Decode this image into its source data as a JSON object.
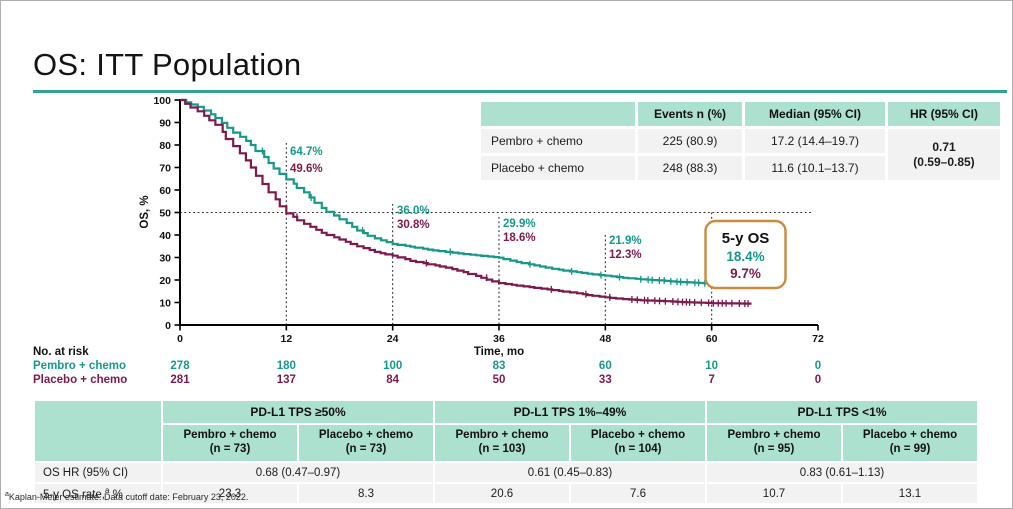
{
  "slide": {
    "title": "OS: ITT Population"
  },
  "colors": {
    "pembro": "#16998a",
    "placebo": "#7d1a4d",
    "header_bg": "#ace0cf",
    "row_bg": "#f2f2f2",
    "title_rule": "#31a294",
    "five_year_box_border": "#c98b3e"
  },
  "summary_table": {
    "col_headers": [
      "Events n (%)",
      "Median (95% CI)",
      "HR (95% CI)"
    ],
    "rows": [
      {
        "label": "Pembro + chemo",
        "events": "225 (80.9)",
        "median": "17.2 (14.4–19.7)"
      },
      {
        "label": "Placebo + chemo",
        "events": "248 (88.3)",
        "median": "11.6 (10.1–13.7)"
      }
    ],
    "hr_line1": "0.71",
    "hr_line2": "(0.59–0.85)"
  },
  "chart_data": {
    "type": "line",
    "subtype": "kaplan-meier-step",
    "title": "",
    "xlabel": "Time, mo",
    "ylabel": "OS, %",
    "xlim": [
      0,
      72
    ],
    "ylim": [
      0,
      100
    ],
    "x_ticks": [
      0,
      12,
      24,
      36,
      48,
      60,
      72
    ],
    "y_ticks": [
      0,
      10,
      20,
      30,
      40,
      50,
      60,
      70,
      80,
      90,
      100
    ],
    "grid": false,
    "reference_line_y": 50,
    "series": [
      {
        "name": "Pembro + chemo",
        "color": "#16998a",
        "end_time": 66,
        "km_points": [
          [
            0,
            100
          ],
          [
            2,
            97
          ],
          [
            4,
            92
          ],
          [
            6,
            85.5
          ],
          [
            8,
            80
          ],
          [
            10,
            72
          ],
          [
            12,
            64.7
          ],
          [
            14,
            59
          ],
          [
            16,
            52
          ],
          [
            18,
            47
          ],
          [
            20,
            42
          ],
          [
            22,
            38.5
          ],
          [
            24,
            36.0
          ],
          [
            26,
            34.8
          ],
          [
            28,
            33.5
          ],
          [
            30,
            32.5
          ],
          [
            32,
            31.5
          ],
          [
            34,
            30.7
          ],
          [
            36,
            29.9
          ],
          [
            38,
            28
          ],
          [
            40,
            26.5
          ],
          [
            42,
            25
          ],
          [
            44,
            23.8
          ],
          [
            46,
            22.8
          ],
          [
            48,
            21.9
          ],
          [
            50,
            21
          ],
          [
            52,
            20.3
          ],
          [
            54,
            19.8
          ],
          [
            56,
            19.2
          ],
          [
            58,
            18.8
          ],
          [
            60,
            18.4
          ],
          [
            62,
            17.8
          ],
          [
            66,
            17.5
          ]
        ]
      },
      {
        "name": "Placebo + chemo",
        "color": "#7d1a4d",
        "end_time": 64.5,
        "km_points": [
          [
            0,
            100
          ],
          [
            2,
            95
          ],
          [
            4,
            89
          ],
          [
            6,
            79.5
          ],
          [
            8,
            70
          ],
          [
            10,
            59
          ],
          [
            12,
            49.6
          ],
          [
            14,
            45
          ],
          [
            16,
            41
          ],
          [
            18,
            38
          ],
          [
            20,
            35
          ],
          [
            22,
            32.5
          ],
          [
            24,
            30.8
          ],
          [
            26,
            28.5
          ],
          [
            28,
            27
          ],
          [
            30,
            25.5
          ],
          [
            32,
            23.5
          ],
          [
            34,
            21
          ],
          [
            36,
            18.6
          ],
          [
            38,
            17.5
          ],
          [
            40,
            16.5
          ],
          [
            42,
            15.5
          ],
          [
            44,
            14.5
          ],
          [
            46,
            13.3
          ],
          [
            48,
            12.3
          ],
          [
            50,
            11.5
          ],
          [
            52,
            11
          ],
          [
            54,
            10.7
          ],
          [
            56,
            10.3
          ],
          [
            58,
            10
          ],
          [
            60,
            9.7
          ],
          [
            64.5,
            9.5
          ]
        ]
      }
    ],
    "annotations": [
      {
        "time_mo": 12,
        "pembro": "64.7%",
        "placebo": "49.6%"
      },
      {
        "time_mo": 24,
        "pembro": "36.0%",
        "placebo": "30.8%"
      },
      {
        "time_mo": 36,
        "pembro": "29.9%",
        "placebo": "18.6%"
      },
      {
        "time_mo": 48,
        "pembro": "21.9%",
        "placebo": "12.3%"
      }
    ],
    "five_year_box": {
      "title": "5-y OS",
      "pembro": "18.4%",
      "placebo": "9.7%"
    }
  },
  "at_risk": {
    "title": "No. at risk",
    "rows": [
      {
        "label": "Pembro + chemo",
        "values": [
          "278",
          "180",
          "100",
          "83",
          "60",
          "10",
          "0"
        ]
      },
      {
        "label": "Placebo + chemo",
        "values": [
          "281",
          "137",
          "84",
          "50",
          "33",
          "7",
          "0"
        ]
      }
    ]
  },
  "subgroup_table": {
    "row_labels": [
      "OS HR (95% CI)"
    ],
    "rate_label": {
      "pre": "5-y OS rate,",
      "sup": "a",
      "post": " %"
    },
    "groups": [
      {
        "label": "PD-L1 TPS ≥50%",
        "cols": [
          {
            "label": "Pembro + chemo",
            "n": "(n = 73)"
          },
          {
            "label": "Placebo + chemo",
            "n": "(n = 73)"
          }
        ],
        "os_hr": "0.68 (0.47–0.97)",
        "rates": [
          "23.3",
          "8.3"
        ]
      },
      {
        "label": "PD-L1 TPS 1%–49%",
        "cols": [
          {
            "label": "Pembro + chemo",
            "n": "(n = 103)"
          },
          {
            "label": "Placebo + chemo",
            "n": "(n = 104)"
          }
        ],
        "os_hr": "0.61 (0.45–0.83)",
        "rates": [
          "20.6",
          "7.6"
        ]
      },
      {
        "label": "PD-L1 TPS <1%",
        "cols": [
          {
            "label": "Pembro + chemo",
            "n": "(n = 95)"
          },
          {
            "label": "Placebo + chemo",
            "n": "(n = 99)"
          }
        ],
        "os_hr": "0.83 (0.61–1.13)",
        "rates": [
          "10.7",
          "13.1"
        ]
      }
    ]
  },
  "footnote": {
    "sup": "a",
    "text": "Kaplan-Meier estimate.  Data cutoff date: February 23, 2022."
  }
}
